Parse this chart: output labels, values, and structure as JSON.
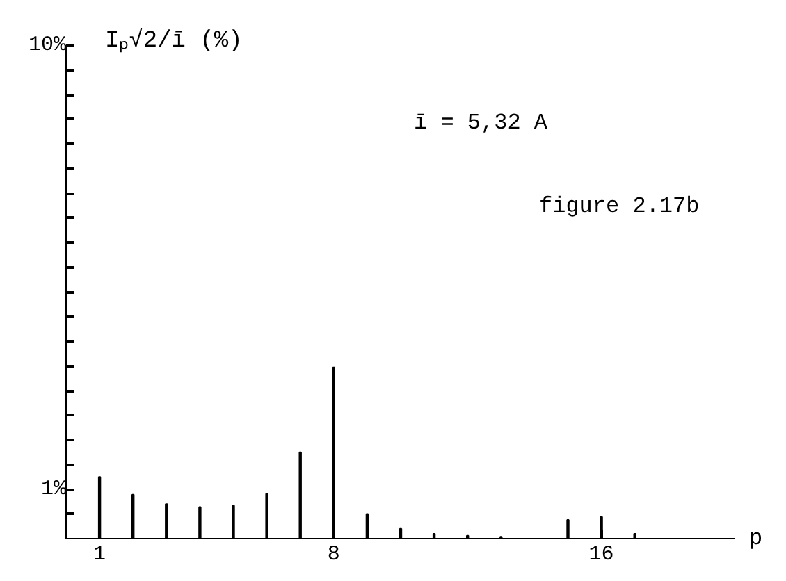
{
  "chart_data": {
    "type": "bar",
    "ylabel": "Iₚ√2/ī   (%)",
    "xlabel": "p",
    "x": [
      1,
      2,
      3,
      4,
      5,
      6,
      7,
      8,
      9,
      10,
      11,
      12,
      13,
      15,
      16,
      17
    ],
    "values": [
      1.25,
      0.89,
      0.7,
      0.64,
      0.67,
      0.91,
      1.75,
      3.47,
      0.5,
      0.2,
      0.1,
      0.06,
      0.04,
      0.38,
      0.44,
      0.1
    ],
    "color": "#000000",
    "xlim": [
      0,
      20
    ],
    "ylim": [
      0,
      10
    ],
    "xticks": [
      1,
      8,
      16
    ],
    "yticks": [
      {
        "value": 0.5,
        "label": null
      },
      {
        "value": 1,
        "label": "1%"
      },
      {
        "value": 1.5,
        "label": null
      },
      {
        "value": 2,
        "label": null
      },
      {
        "value": 2.5,
        "label": null
      },
      {
        "value": 3,
        "label": null
      },
      {
        "value": 3.5,
        "label": null
      },
      {
        "value": 4,
        "label": null
      },
      {
        "value": 4.5,
        "label": null
      },
      {
        "value": 5,
        "label": null
      },
      {
        "value": 5.5,
        "label": null
      },
      {
        "value": 6,
        "label": null
      },
      {
        "value": 6.5,
        "label": null
      },
      {
        "value": 7,
        "label": null
      },
      {
        "value": 7.5,
        "label": null
      },
      {
        "value": 8,
        "label": null
      },
      {
        "value": 8.5,
        "label": null
      },
      {
        "value": 9,
        "label": null
      },
      {
        "value": 9.5,
        "label": null
      },
      {
        "value": 10,
        "label": "10%"
      }
    ],
    "annotations": [
      "ī = 5,32 A",
      "figure 2.17b"
    ],
    "grid": false
  }
}
